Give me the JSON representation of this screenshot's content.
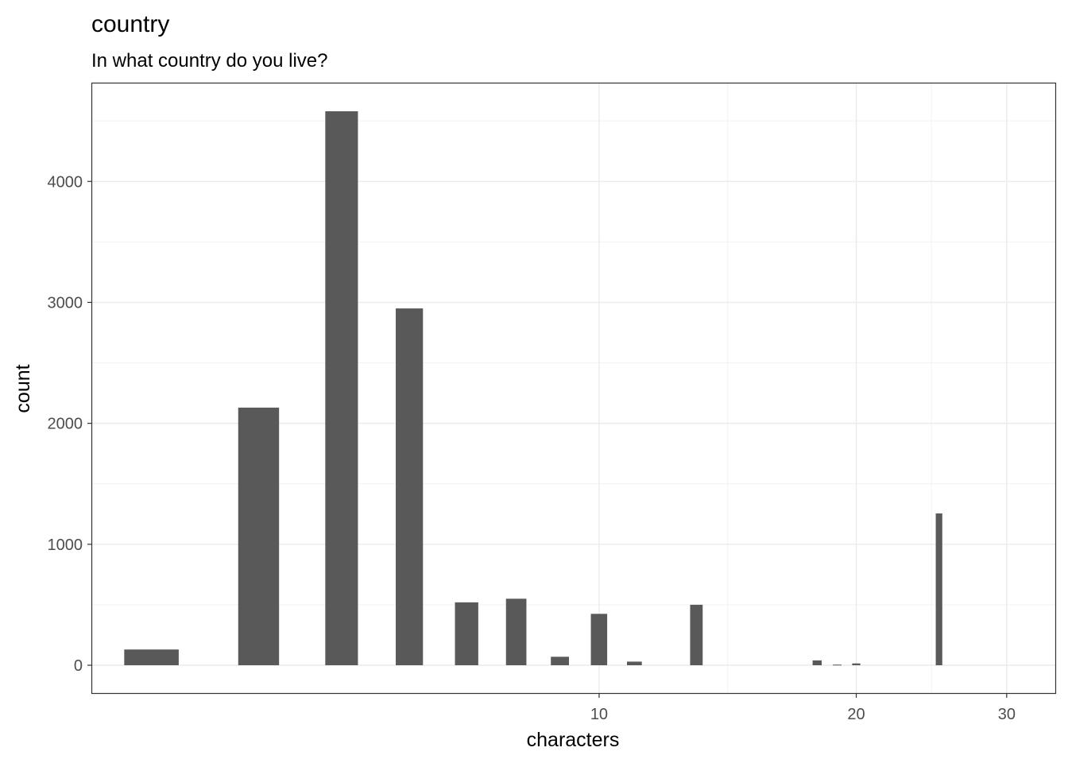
{
  "chart_data": {
    "type": "bar",
    "title": "country",
    "subtitle": "In what country do you live?",
    "xlabel": "characters",
    "ylabel": "count",
    "x_scale": "log10",
    "xlim": [
      2.55,
      34.2
    ],
    "ylim": [
      -230,
      4810
    ],
    "x_ticks": [
      10,
      20,
      30
    ],
    "y_ticks": [
      0,
      1000,
      2000,
      3000,
      4000
    ],
    "x_tick_labels": [
      "10",
      "20",
      "30"
    ],
    "y_tick_labels": [
      "0",
      "1000",
      "2000",
      "3000",
      "4000"
    ],
    "grid": true,
    "bar_color": "#595959",
    "bars": [
      {
        "x": 3,
        "value": 130
      },
      {
        "x": 4,
        "value": 2130
      },
      {
        "x": 5,
        "value": 4580
      },
      {
        "x": 6,
        "value": 2950
      },
      {
        "x": 7,
        "value": 520
      },
      {
        "x": 8,
        "value": 550
      },
      {
        "x": 9,
        "value": 70
      },
      {
        "x": 10,
        "value": 425
      },
      {
        "x": 11,
        "value": 30
      },
      {
        "x": 13,
        "value": 500
      },
      {
        "x": 18,
        "value": 40
      },
      {
        "x": 19,
        "value": 5
      },
      {
        "x": 20,
        "value": 15
      },
      {
        "x": 25,
        "value": 1255
      }
    ]
  }
}
